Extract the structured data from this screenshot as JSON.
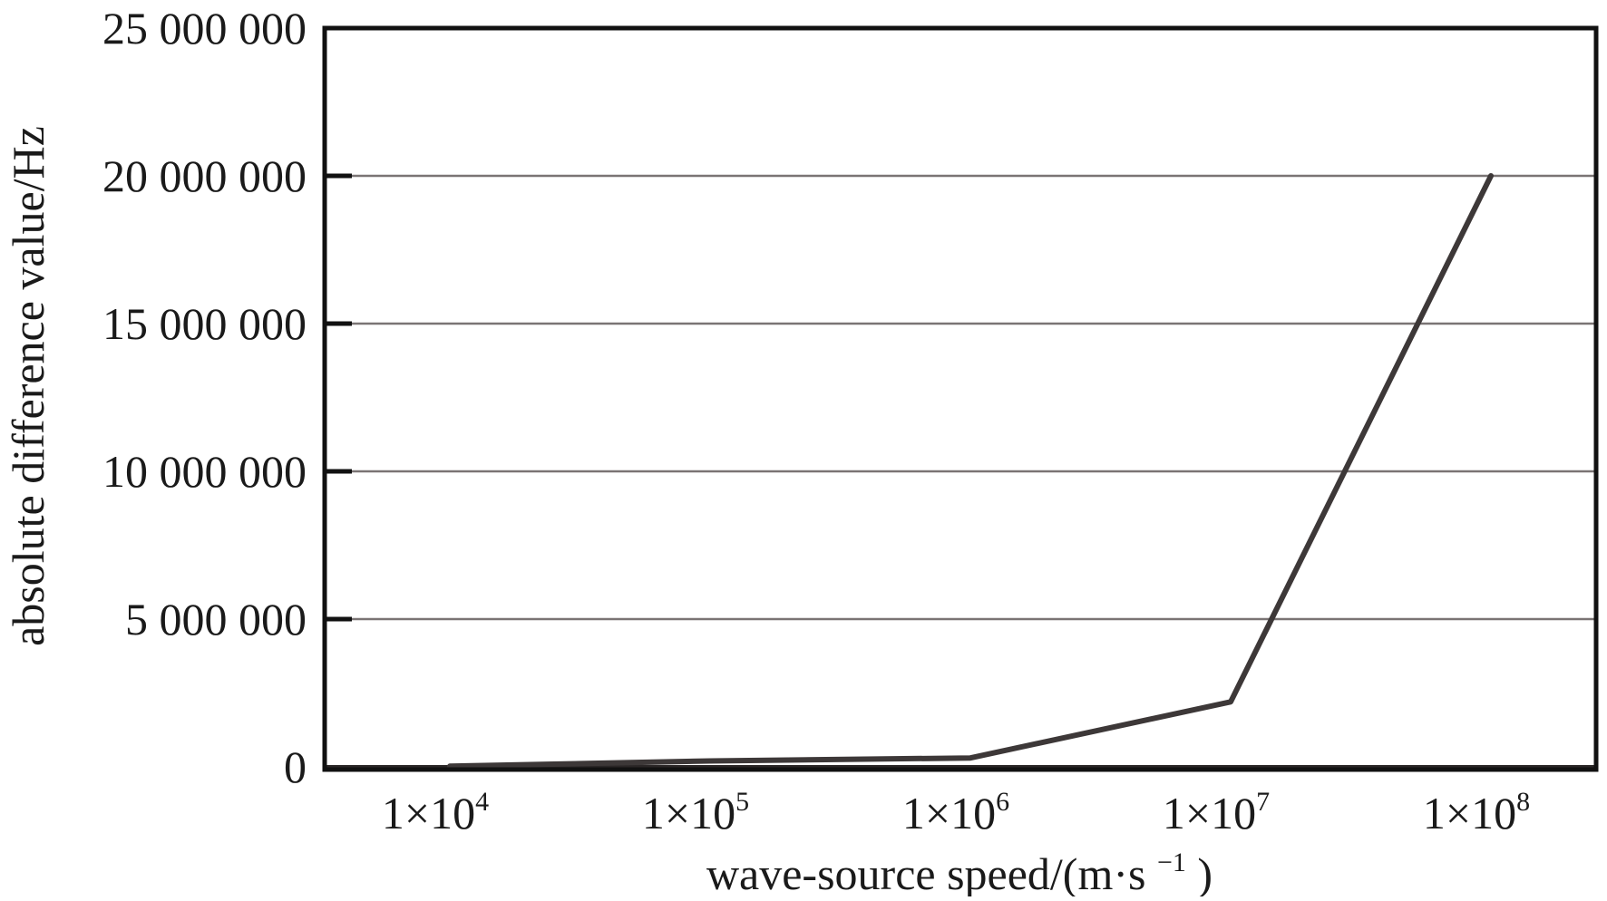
{
  "chart_data": {
    "type": "line",
    "title": "",
    "xlabel": "wave-source speed/(m·s",
    "xlabel_sup": "−1",
    "xlabel_close": ")",
    "ylabel": "absolute difference value/Hz",
    "x_scale": "log",
    "x_ticks": [
      {
        "mantissa": "1×10",
        "exp": "4"
      },
      {
        "mantissa": "1×10",
        "exp": "5"
      },
      {
        "mantissa": "1×10",
        "exp": "6"
      },
      {
        "mantissa": "1×10",
        "exp": "7"
      },
      {
        "mantissa": "1×10",
        "exp": "8"
      }
    ],
    "y_ticks": [
      "0",
      "5 000 000",
      "10 000 000",
      "15 000 000",
      "20 000 000",
      "25 000 000"
    ],
    "y_tick_values": [
      0,
      5000000,
      10000000,
      15000000,
      20000000,
      25000000
    ],
    "ylim": [
      0,
      25000000
    ],
    "grid": "horizontal",
    "legend": "none",
    "series": [
      {
        "x": [
          10000,
          100000,
          1000000,
          10000000,
          100000000
        ],
        "values": [
          20000,
          200000,
          300000,
          2200000,
          20000000
        ],
        "color": "#3d3838"
      }
    ]
  }
}
